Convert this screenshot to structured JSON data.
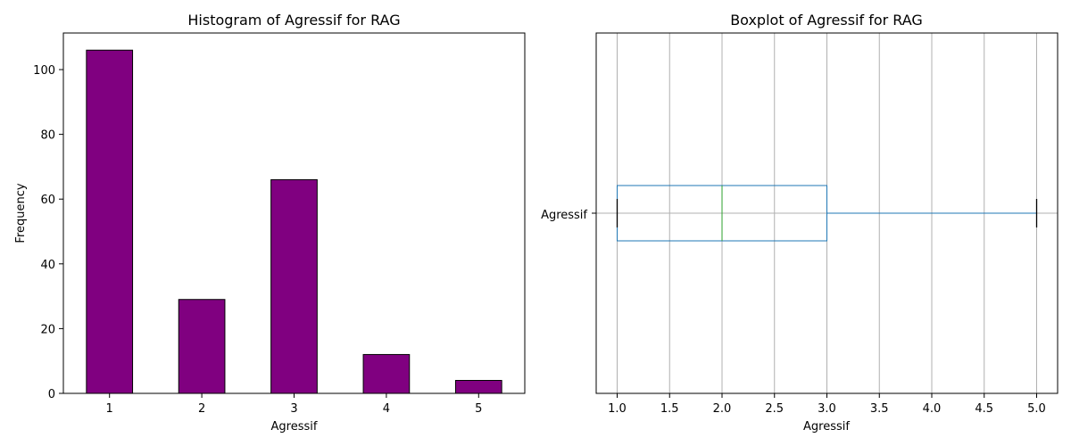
{
  "chart_data": [
    {
      "type": "bar",
      "title": "Histogram of Agressif for RAG",
      "xlabel": "Agressif",
      "ylabel": "Frequency",
      "categories": [
        "1",
        "2",
        "3",
        "4",
        "5"
      ],
      "values": [
        106,
        29,
        66,
        12,
        4
      ],
      "ylim": [
        0,
        111.3
      ],
      "yticks": [
        0,
        20,
        40,
        60,
        80,
        100
      ],
      "grid": false,
      "colors": {
        "bar_fill": "#800080",
        "bar_edge": "#000000"
      }
    },
    {
      "type": "box",
      "orientation": "horizontal",
      "title": "Boxplot of Agressif for RAG",
      "xlabel": "Agressif",
      "category": "Agressif",
      "stats": {
        "whislo": 1.0,
        "q1": 1.0,
        "median": 2.0,
        "q3": 3.0,
        "whishi": 5.0
      },
      "xlim": [
        0.8,
        5.2
      ],
      "xticks": [
        1.0,
        1.5,
        2.0,
        2.5,
        3.0,
        3.5,
        4.0,
        4.5,
        5.0
      ],
      "xtick_labels": [
        "1.0",
        "1.5",
        "2.0",
        "2.5",
        "3.0",
        "3.5",
        "4.0",
        "4.5",
        "5.0"
      ],
      "grid": true,
      "colors": {
        "box": "#1f77b4",
        "median": "#2ca02c",
        "caps": "#000000",
        "grid": "#b0b0b0"
      }
    }
  ]
}
